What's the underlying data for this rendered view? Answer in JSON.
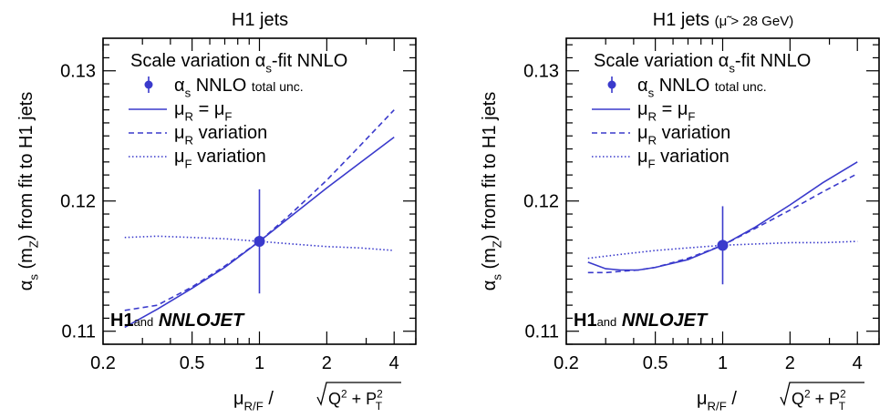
{
  "chart_data": [
    {
      "type": "line",
      "title": "H1 jets",
      "title_suffix": "",
      "ylabel": {
        "main": "α",
        "sub1": "s",
        "mid": " (m",
        "sub2": "Z",
        "end": ") from fit to H1 jets"
      },
      "xlabel": {
        "mu": "μ",
        "sub": "R/F",
        "slash": " / ",
        "Q": "Q",
        "sq": "2",
        "plus": " + P",
        "Psub": "T",
        "Psup": "2"
      },
      "xscale": "log",
      "xlim": [
        0.2,
        5
      ],
      "ylim": [
        0.109,
        0.1325
      ],
      "xticks": [
        0.2,
        0.5,
        1,
        2,
        4
      ],
      "xtick_labels": [
        "0.2",
        "0.5",
        "1",
        "2",
        "4"
      ],
      "yticks": [
        0.11,
        0.12,
        0.13
      ],
      "ytick_labels": [
        "0.11",
        "0.12",
        "0.13"
      ],
      "color": "#3a3acc",
      "legend": {
        "header": "Scale variation α",
        "header_sub": "s",
        "header_end": "-fit NNLO",
        "point": "α",
        "point_sub": "s",
        "point_text": " NNLO",
        "point_small": "total unc.",
        "items": [
          {
            "mu": "μ",
            "sub": "R",
            "text": " = μ",
            "sub2": "F",
            "style": "solid"
          },
          {
            "mu": "μ",
            "sub": "R",
            "text": " variation",
            "sub2": "",
            "style": "dashed"
          },
          {
            "mu": "μ",
            "sub": "F",
            "text": " variation",
            "sub2": "",
            "style": "dotted"
          }
        ]
      },
      "series": [
        {
          "style": "solid",
          "x": [
            0.25,
            0.35,
            0.5,
            0.7,
            1.0,
            1.4,
            2.0,
            2.8,
            4.0
          ],
          "y": [
            0.1103,
            0.1117,
            0.1133,
            0.1149,
            0.1169,
            0.1189,
            0.121,
            0.1229,
            0.1249
          ]
        },
        {
          "style": "dashed",
          "x": [
            0.25,
            0.35,
            0.5,
            0.7,
            1.0,
            1.4,
            2.0,
            2.8,
            4.0
          ],
          "y": [
            0.1116,
            0.112,
            0.1134,
            0.115,
            0.1169,
            0.1191,
            0.1216,
            0.1242,
            0.127
          ]
        },
        {
          "style": "dotted",
          "x": [
            0.25,
            0.35,
            0.5,
            0.7,
            1.0,
            1.4,
            2.0,
            2.8,
            4.0
          ],
          "y": [
            0.1172,
            0.1173,
            0.1172,
            0.1171,
            0.1169,
            0.1167,
            0.1165,
            0.1164,
            0.1162
          ]
        }
      ],
      "point": {
        "x": 1.0,
        "y": 0.1169,
        "err_low": 0.004,
        "err_high": 0.004
      },
      "footer": {
        "h1": "H1",
        "and": "and",
        "nnlojet": "NNLOJET"
      }
    },
    {
      "type": "line",
      "title": "H1 jets",
      "title_suffix": "(μ̃ > 28 GeV)",
      "ylabel": {
        "main": "α",
        "sub1": "s",
        "mid": " (m",
        "sub2": "Z",
        "end": ") from fit to H1 jets"
      },
      "xlabel": {
        "mu": "μ",
        "sub": "R/F",
        "slash": " / ",
        "Q": "Q",
        "sq": "2",
        "plus": " + P",
        "Psub": "T",
        "Psup": "2"
      },
      "xscale": "log",
      "xlim": [
        0.2,
        5
      ],
      "ylim": [
        0.109,
        0.1325
      ],
      "xticks": [
        0.2,
        0.5,
        1,
        2,
        4
      ],
      "xtick_labels": [
        "0.2",
        "0.5",
        "1",
        "2",
        "4"
      ],
      "yticks": [
        0.11,
        0.12,
        0.13
      ],
      "ytick_labels": [
        "0.11",
        "0.12",
        "0.13"
      ],
      "color": "#3a3acc",
      "legend": {
        "header": "Scale variation α",
        "header_sub": "s",
        "header_end": "-fit NNLO",
        "point": "α",
        "point_sub": "s",
        "point_text": " NNLO",
        "point_small": "total unc.",
        "items": [
          {
            "mu": "μ",
            "sub": "R",
            "text": " = μ",
            "sub2": "F",
            "style": "solid"
          },
          {
            "mu": "μ",
            "sub": "R",
            "text": " variation",
            "sub2": "",
            "style": "dashed"
          },
          {
            "mu": "μ",
            "sub": "F",
            "text": " variation",
            "sub2": "",
            "style": "dotted"
          }
        ]
      },
      "series": [
        {
          "style": "solid",
          "x": [
            0.25,
            0.3,
            0.35,
            0.42,
            0.5,
            0.7,
            1.0,
            1.4,
            2.0,
            2.8,
            4.0
          ],
          "y": [
            0.1153,
            0.1148,
            0.1147,
            0.1147,
            0.1149,
            0.1155,
            0.1166,
            0.118,
            0.1197,
            0.1214,
            0.123
          ]
        },
        {
          "style": "dashed",
          "x": [
            0.25,
            0.3,
            0.35,
            0.42,
            0.5,
            0.7,
            1.0,
            1.4,
            2.0,
            2.8,
            4.0
          ],
          "y": [
            0.1145,
            0.1145,
            0.1146,
            0.1147,
            0.1149,
            0.1156,
            0.1166,
            0.1179,
            0.1193,
            0.1207,
            0.1221
          ]
        },
        {
          "style": "dotted",
          "x": [
            0.25,
            0.35,
            0.5,
            0.7,
            1.0,
            1.4,
            2.0,
            2.8,
            4.0
          ],
          "y": [
            0.1156,
            0.1159,
            0.1162,
            0.1164,
            0.1166,
            0.1167,
            0.1168,
            0.1168,
            0.1169
          ]
        }
      ],
      "point": {
        "x": 1.0,
        "y": 0.1166,
        "err_low": 0.003,
        "err_high": 0.003
      },
      "footer": {
        "h1": "H1",
        "and": "and",
        "nnlojet": "NNLOJET"
      }
    }
  ]
}
